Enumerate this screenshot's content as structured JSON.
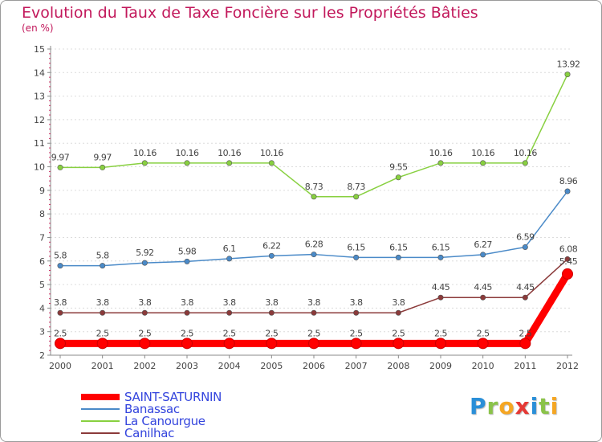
{
  "chart_data": {
    "type": "line",
    "title": "Evolution du Taux de Taxe Foncière sur les Propriétés Bâties",
    "subtitle": "(en %)",
    "xlabel": "",
    "ylabel": "",
    "x": [
      "2000",
      "2001",
      "2002",
      "2003",
      "2004",
      "2005",
      "2006",
      "2007",
      "2008",
      "2009",
      "2010",
      "2011",
      "2012"
    ],
    "ylim": [
      2,
      15
    ],
    "yticks": [
      2,
      3,
      4,
      5,
      6,
      7,
      8,
      9,
      10,
      11,
      12,
      13,
      14,
      15
    ],
    "legend_position": "bottom-left",
    "series": [
      {
        "name": "SAINT-SATURNIN",
        "color": "#ff0000",
        "values": [
          2.5,
          2.5,
          2.5,
          2.5,
          2.5,
          2.5,
          2.5,
          2.5,
          2.5,
          2.5,
          2.5,
          2.5,
          5.45
        ],
        "labels": [
          "2.5",
          "2.5",
          "2.5",
          "2.5",
          "2.5",
          "2.5",
          "2.5",
          "2.5",
          "2.5",
          "2.5",
          "2.5",
          "2.5",
          "5.45"
        ]
      },
      {
        "name": "Banassac",
        "color": "#4a8ac8",
        "values": [
          5.8,
          5.8,
          5.92,
          5.98,
          6.1,
          6.22,
          6.28,
          6.15,
          6.15,
          6.15,
          6.27,
          6.59,
          8.96
        ],
        "labels": [
          "5.8",
          "5.8",
          "5.92",
          "5.98",
          "6.1",
          "6.22",
          "6.28",
          "6.15",
          "6.15",
          "6.15",
          "6.27",
          "6.59",
          "8.96"
        ]
      },
      {
        "name": "La Canourgue",
        "color": "#88d040",
        "values": [
          9.97,
          9.97,
          10.16,
          10.16,
          10.16,
          10.16,
          8.73,
          8.73,
          9.55,
          10.16,
          10.16,
          10.16,
          13.92
        ],
        "labels": [
          "9.97",
          "9.97",
          "10.16",
          "10.16",
          "10.16",
          "10.16",
          "8.73",
          "8.73",
          "9.55",
          "10.16",
          "10.16",
          "10.16",
          "13.92"
        ]
      },
      {
        "name": "Canilhac",
        "color": "#8b3a3a",
        "values": [
          3.8,
          3.8,
          3.8,
          3.8,
          3.8,
          3.8,
          3.8,
          3.8,
          3.8,
          4.45,
          4.45,
          4.45,
          6.08
        ],
        "labels": [
          "3.8",
          "3.8",
          "3.8",
          "3.8",
          "3.8",
          "3.8",
          "3.8",
          "3.8",
          "3.8",
          "4.45",
          "4.45",
          "4.45",
          "6.08"
        ]
      }
    ]
  },
  "logo": {
    "letters": [
      {
        "ch": "P",
        "color": "#2a8fd8"
      },
      {
        "ch": "r",
        "color": "#8bc34a"
      },
      {
        "ch": "o",
        "color": "#f5a623"
      },
      {
        "ch": "x",
        "color": "#e53935"
      },
      {
        "ch": "i",
        "color": "#2a8fd8"
      },
      {
        "ch": "t",
        "color": "#8bc34a"
      },
      {
        "ch": "i",
        "color": "#f5a623"
      }
    ]
  }
}
